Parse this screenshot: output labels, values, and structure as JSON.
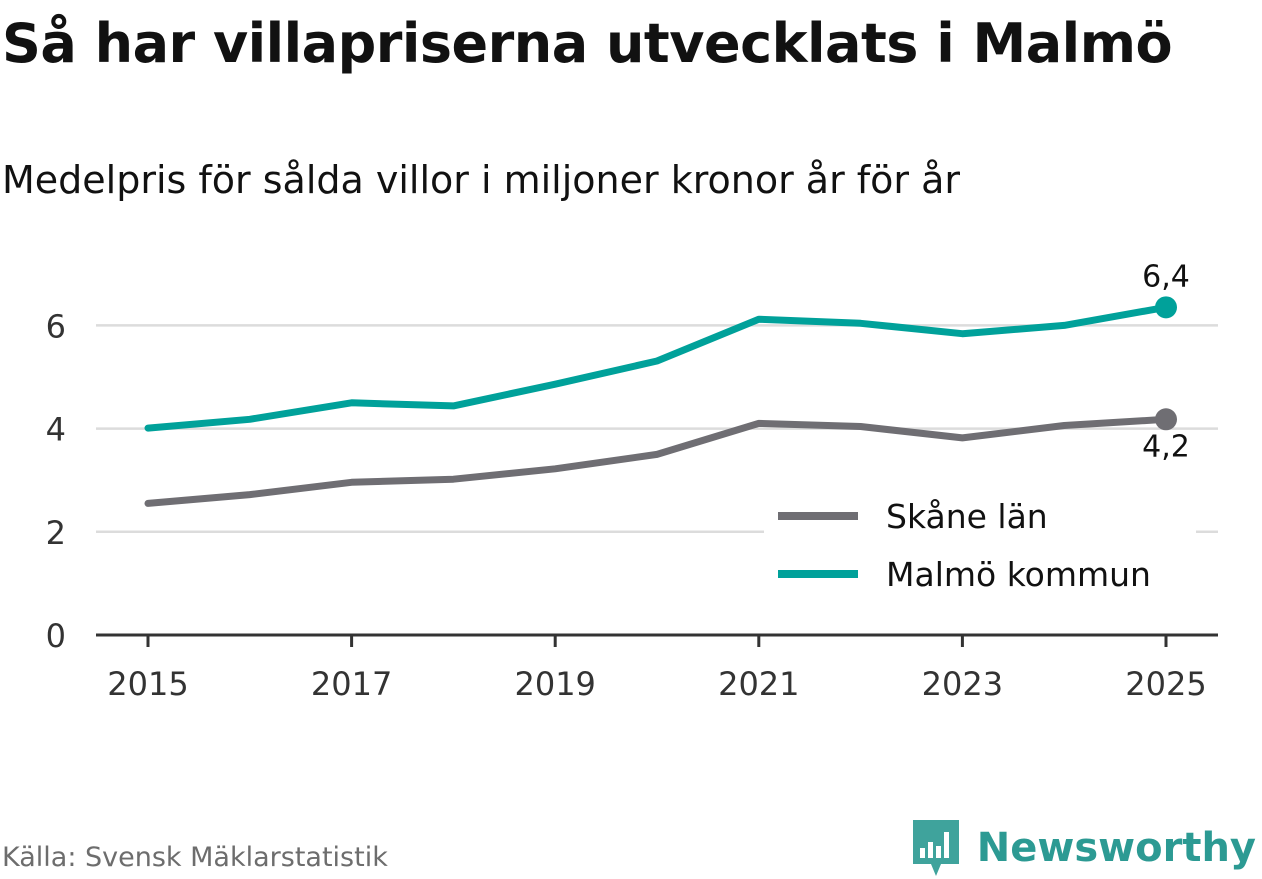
{
  "title": "Så har villapriserna utvecklats i Malmö",
  "subtitle": "Medelpris för sålda villor i miljoner kronor år för år",
  "source": "Källa: Svensk Mäklarstatistik",
  "brand": {
    "name": "Newsworthy",
    "icon": "newsworthy-logo-icon",
    "color": "#2c9a93"
  },
  "chart_data": {
    "type": "line",
    "title": "Så har villapriserna utvecklats i Malmö",
    "subtitle": "Medelpris för sålda villor i miljoner kronor år för år",
    "xlabel": "",
    "ylabel": "",
    "x": [
      2015,
      2016,
      2017,
      2018,
      2019,
      2020,
      2021,
      2022,
      2023,
      2024,
      2025
    ],
    "x_ticks": [
      "2015",
      "2017",
      "2019",
      "2021",
      "2023",
      "2025"
    ],
    "y_ticks": [
      "0",
      "2",
      "4",
      "6"
    ],
    "ylim": [
      0,
      7
    ],
    "grid": true,
    "legend_position": "bottom-right",
    "series": [
      {
        "name": "Skåne län",
        "color": "#6f6e73",
        "values": [
          2.55,
          2.72,
          2.96,
          3.02,
          3.22,
          3.5,
          4.1,
          4.04,
          3.82,
          4.06,
          4.18
        ],
        "end_label": "4,2"
      },
      {
        "name": "Malmö kommun",
        "color": "#00a19a",
        "values": [
          4.01,
          4.18,
          4.5,
          4.44,
          4.86,
          5.31,
          6.12,
          6.04,
          5.84,
          6.0,
          6.35
        ],
        "end_label": "6,4"
      }
    ]
  }
}
